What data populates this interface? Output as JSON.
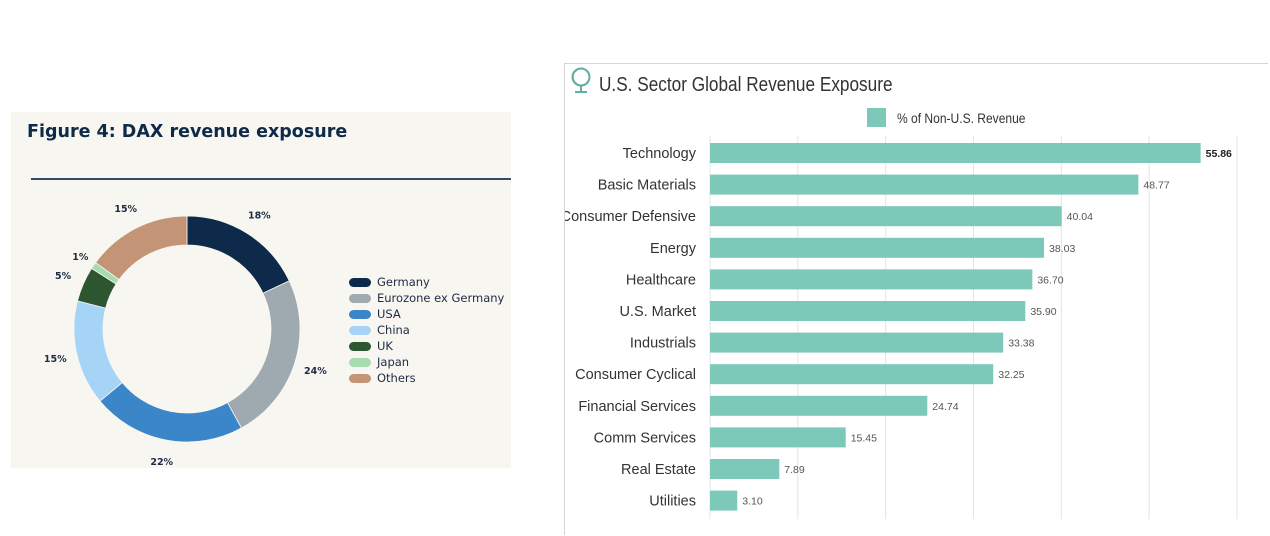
{
  "colors": {
    "germany": "#0e2a4a",
    "eurozone_ex_germany": "#9eaab0",
    "usa": "#3a86c8",
    "china": "#a6d4f6",
    "uk": "#2d5530",
    "japan": "#a6dcb0",
    "others": "#c39576",
    "bar": "#7cc9b9",
    "grid": "#e4e4e4",
    "globe": "#5fae9e"
  },
  "icons": {
    "globe": "globe-icon"
  },
  "chart_data": [
    {
      "type": "pie",
      "title": "Figure 4: DAX revenue exposure",
      "style": "donut",
      "labels": [
        "Germany",
        "Eurozone ex Germany",
        "USA",
        "China",
        "UK",
        "Japan",
        "Others"
      ],
      "values": [
        18,
        24,
        22,
        15,
        5,
        1,
        15
      ],
      "value_labels": [
        "18%",
        "24%",
        "22%",
        "15%",
        "5%",
        "1%",
        "15%"
      ],
      "legend_position": "right"
    },
    {
      "type": "bar",
      "orientation": "horizontal",
      "title": "U.S. Sector Global Revenue Exposure",
      "series": [
        {
          "name": "% of Non-U.S. Revenue",
          "values": [
            55.86,
            48.77,
            40.04,
            38.03,
            36.7,
            35.9,
            33.38,
            32.25,
            24.74,
            15.45,
            7.89,
            3.1
          ]
        }
      ],
      "categories": [
        "Technology",
        "Basic Materials",
        "Consumer Defensive",
        "Energy",
        "Healthcare",
        "U.S. Market",
        "Industrials",
        "Consumer Cyclical",
        "Financial Services",
        "Comm Services",
        "Real Estate",
        "Utilities"
      ],
      "value_labels": [
        "55.86",
        "48.77",
        "40.04",
        "38.03",
        "36.70",
        "35.90",
        "33.38",
        "32.25",
        "24.74",
        "15.45",
        "7.89",
        "3.10"
      ],
      "xlim": [
        0,
        60
      ],
      "grid": true,
      "legend_position": "top"
    }
  ]
}
